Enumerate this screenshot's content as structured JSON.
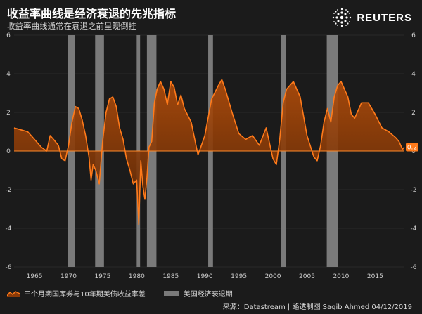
{
  "header": {
    "title": "收益率曲线是经济衰退的先兆指标",
    "subtitle": "收益率曲线通常在衰退之前呈现倒挂",
    "logo_text": "REUTERS"
  },
  "legend": {
    "series_label": "三个月期国库券与10年期美债收益率差",
    "recession_label": "美国经济衰退期"
  },
  "footer": {
    "source": "来源：Datastream | 路透制图 Saqib Ahmed 04/12/2019"
  },
  "colors": {
    "background": "#1b1b1b",
    "line": "#ff7a1a",
    "area_top": "#b34d0a",
    "area_bottom": "#5a2605",
    "recession": "#7a7a7a",
    "zero_line": "#ff8a2a",
    "gridline": "#3a3a3a",
    "last_value_badge": "#ff7a1a"
  },
  "chart_data": {
    "type": "area",
    "title": "收益率曲线是经济衰退的先兆指标",
    "subtitle": "收益率曲线通常在衰退之前呈现倒挂",
    "xlabel": "",
    "ylabel": "",
    "xlim": [
      1962.0,
      2019.3
    ],
    "ylim": [
      -6,
      6
    ],
    "yticks": [
      -6,
      -4,
      -2,
      0,
      2,
      4,
      6
    ],
    "xticks": [
      1965,
      1970,
      1975,
      1980,
      1985,
      1990,
      1995,
      2000,
      2005,
      2010,
      2015
    ],
    "last_value_label": "0.2",
    "series": [
      {
        "name": "三个月期国库券与10年期美债收益率差",
        "x": [
          1962.0,
          1963.0,
          1964.0,
          1965.0,
          1966.0,
          1966.8,
          1967.3,
          1967.8,
          1968.5,
          1969.0,
          1969.5,
          1970.0,
          1970.5,
          1971.0,
          1971.5,
          1972.0,
          1972.5,
          1973.0,
          1973.3,
          1973.6,
          1974.0,
          1974.5,
          1975.0,
          1975.5,
          1976.0,
          1976.5,
          1977.0,
          1977.5,
          1978.0,
          1978.5,
          1979.0,
          1979.5,
          1980.0,
          1980.3,
          1980.6,
          1980.9,
          1981.2,
          1981.5,
          1981.8,
          1982.2,
          1982.6,
          1983.0,
          1983.5,
          1984.0,
          1984.5,
          1985.0,
          1985.5,
          1986.0,
          1986.5,
          1987.0,
          1988.0,
          1989.0,
          1989.5,
          1990.0,
          1991.0,
          1992.0,
          1992.5,
          1993.0,
          1994.0,
          1995.0,
          1996.0,
          1997.0,
          1998.0,
          1999.0,
          2000.0,
          2000.5,
          2001.0,
          2001.5,
          2002.0,
          2003.0,
          2004.0,
          2005.0,
          2006.0,
          2006.5,
          2007.0,
          2007.5,
          2008.0,
          2008.5,
          2009.0,
          2009.5,
          2010.0,
          2010.5,
          2011.0,
          2011.5,
          2012.0,
          2013.0,
          2014.0,
          2015.0,
          2016.0,
          2017.0,
          2018.0,
          2018.5,
          2019.0,
          2019.3
        ],
        "values": [
          1.2,
          1.1,
          1.0,
          0.6,
          0.2,
          0.0,
          0.8,
          0.6,
          0.3,
          -0.4,
          -0.5,
          0.3,
          1.5,
          2.3,
          2.2,
          1.6,
          0.8,
          -0.3,
          -1.5,
          -0.7,
          -1.0,
          -1.7,
          0.5,
          2.0,
          2.7,
          2.8,
          2.3,
          1.2,
          0.6,
          -0.4,
          -1.0,
          -1.7,
          -1.5,
          -3.8,
          -0.5,
          -1.8,
          -2.5,
          -1.4,
          0.2,
          0.5,
          2.5,
          3.2,
          3.6,
          3.2,
          2.4,
          3.6,
          3.3,
          2.4,
          2.9,
          2.2,
          1.5,
          -0.2,
          0.3,
          0.8,
          2.7,
          3.4,
          3.7,
          3.2,
          2.0,
          0.9,
          0.6,
          0.8,
          0.3,
          1.2,
          -0.4,
          -0.7,
          0.6,
          2.5,
          3.2,
          3.6,
          2.8,
          0.8,
          -0.3,
          -0.5,
          0.3,
          1.5,
          2.2,
          1.5,
          2.8,
          3.4,
          3.6,
          3.2,
          2.8,
          1.9,
          1.7,
          2.5,
          2.5,
          1.9,
          1.2,
          1.0,
          0.7,
          0.5,
          0.1,
          0.2
        ]
      }
    ],
    "recessions": [
      [
        1969.9,
        1970.9
      ],
      [
        1973.9,
        1975.2
      ],
      [
        1980.0,
        1980.5
      ],
      [
        1981.5,
        1982.9
      ],
      [
        1990.5,
        1991.2
      ],
      [
        2001.2,
        2001.9
      ],
      [
        2007.9,
        2009.5
      ]
    ],
    "legend_position": "bottom-left",
    "grid": true
  }
}
